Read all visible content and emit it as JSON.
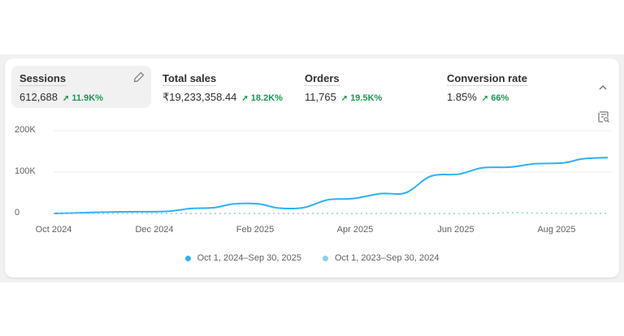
{
  "metrics": [
    {
      "label": "Sessions",
      "value": "612,688",
      "change": "11.9K%",
      "active": true
    },
    {
      "label": "Total sales",
      "value": "₹19,233,358.44",
      "change": "18.2K%"
    },
    {
      "label": "Orders",
      "value": "11,765",
      "change": "19.5K%"
    },
    {
      "label": "Conversion rate",
      "value": "1.85%",
      "change": "66%"
    }
  ],
  "icons": {
    "edit": "pencil-icon",
    "collapse": "chevron-up-icon",
    "explore": "search-report-icon",
    "trend": "arrow-up-right-icon"
  },
  "colors": {
    "current": "#2eb1f5",
    "previous": "#8ccff0",
    "positive": "#1a9952"
  },
  "chart_data": {
    "type": "line",
    "yticks": [
      "200K",
      "100K",
      "0"
    ],
    "ylim": [
      0,
      200000
    ],
    "xticks": [
      "Oct 2024",
      "Dec 2024",
      "Feb 2025",
      "Apr 2025",
      "Jun 2025",
      "Aug 2025"
    ],
    "xrange": [
      "2024-10-01",
      "2025-09-01"
    ],
    "grid": true,
    "legend_position": "bottom",
    "series": [
      {
        "name": "Oct 1, 2024–Sep 30, 2025",
        "style": "solid",
        "x": [
          "2024-10-01",
          "2024-10-13",
          "2024-10-20",
          "2024-11-11",
          "2024-12-08",
          "2024-12-23",
          "2025-01-06",
          "2025-01-18",
          "2025-02-02",
          "2025-02-14",
          "2025-03-01",
          "2025-03-16",
          "2025-03-31",
          "2025-04-17",
          "2025-05-02",
          "2025-05-17",
          "2025-06-03",
          "2025-06-17",
          "2025-07-04",
          "2025-07-19",
          "2025-08-05",
          "2025-08-17",
          "2025-09-01"
        ],
        "values": [
          0,
          1000,
          2000,
          4000,
          5000,
          12000,
          14000,
          23000,
          23000,
          13000,
          14000,
          33000,
          36000,
          48000,
          50000,
          90000,
          95000,
          110000,
          112000,
          120000,
          122000,
          132000,
          135000
        ]
      },
      {
        "name": "Oct 1, 2023–Sep 30, 2024",
        "style": "dotted",
        "x": [
          "2024-10-01",
          "2025-01-01",
          "2025-04-01",
          "2025-06-15",
          "2025-07-05",
          "2025-07-25",
          "2025-09-01"
        ],
        "values": [
          0,
          0,
          0,
          0,
          2000,
          500,
          0
        ]
      }
    ]
  }
}
